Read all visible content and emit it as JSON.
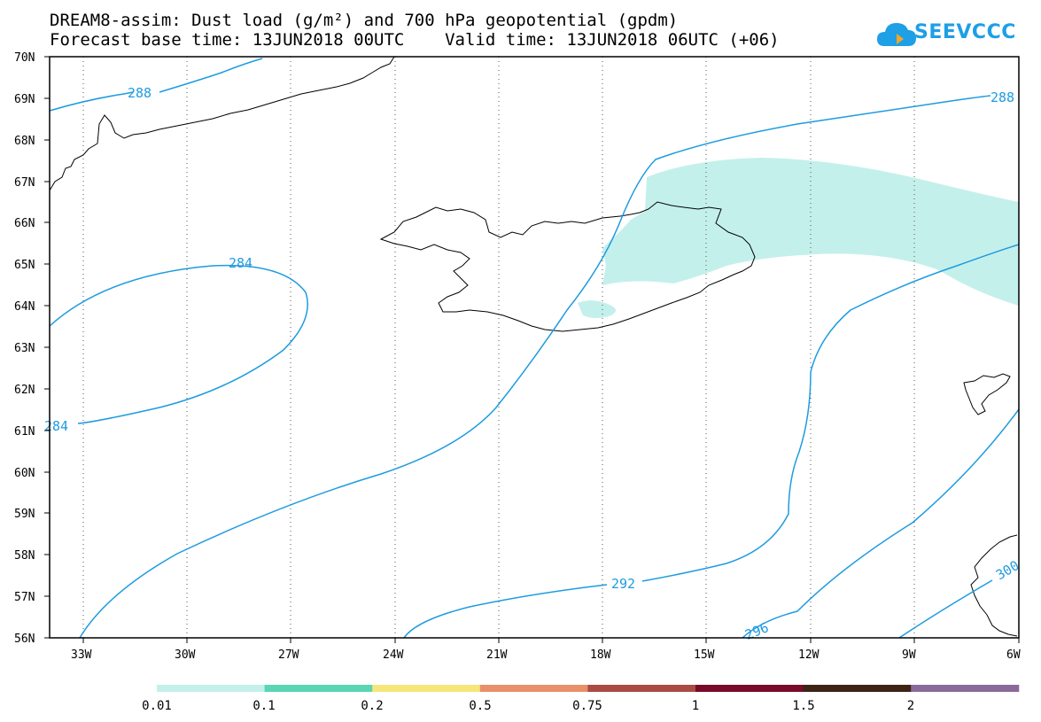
{
  "header": {
    "title_line1": "DREAM8-assim: Dust load (g/m²) and 700 hPa geopotential (gpdm)",
    "title_line2": "Forecast base time: 13JUN2018 00UTC    Valid time: 13JUN2018 06UTC (+06)"
  },
  "logo": {
    "text": "SEEVCCC",
    "color": "#1e9fe6"
  },
  "map": {
    "lat_labels": [
      "70N",
      "69N",
      "68N",
      "67N",
      "66N",
      "65N",
      "64N",
      "63N",
      "62N",
      "61N",
      "60N",
      "59N",
      "58N",
      "57N",
      "56N"
    ],
    "lon_labels": [
      "33W",
      "30W",
      "27W",
      "24W",
      "21W",
      "18W",
      "15W",
      "12W",
      "9W",
      "6W"
    ],
    "contour_color": "#1e9be0",
    "dust_color": "#c4f0ec",
    "contour_labels": [
      "288",
      "288",
      "284",
      "284",
      "292",
      "296",
      "300"
    ]
  },
  "colorbar": {
    "colors": [
      "#c4f0ec",
      "#5ad6b4",
      "#f6e67a",
      "#e8906a",
      "#a84c44",
      "#7a0a2a",
      "#3d2414",
      "#8a6a9a"
    ],
    "labels": [
      "0.01",
      "0.1",
      "0.2",
      "0.5",
      "0.75",
      "1",
      "1.5",
      "2"
    ]
  }
}
